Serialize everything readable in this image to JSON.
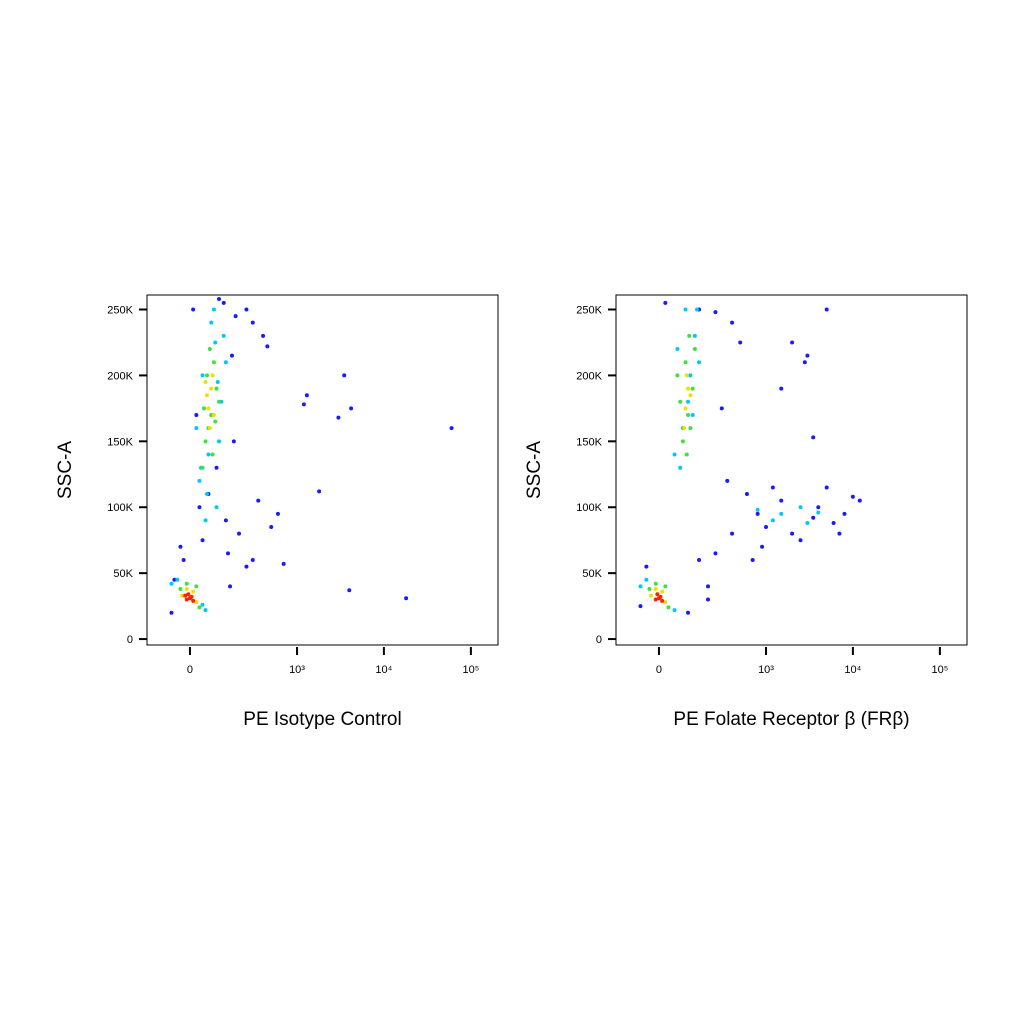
{
  "chart_data": [
    {
      "type": "scatter",
      "xlabel": "PE Isotype Control",
      "ylabel": "SSC-A",
      "xscale": "asinh",
      "xlim": [
        -165,
        205000
      ],
      "ylim": [
        -4500,
        261000
      ],
      "xticks": [
        0,
        {
          "value": 1000,
          "label": "10³"
        },
        {
          "value": 10000,
          "label": "10⁴"
        },
        {
          "value": 100000,
          "label": "10⁵"
        }
      ],
      "yticks": [
        0,
        {
          "value": 50000,
          "label": "50K"
        },
        {
          "value": 100000,
          "label": "100K"
        },
        {
          "value": 150000,
          "label": "150K"
        },
        {
          "value": 200000,
          "label": "200K"
        },
        {
          "value": 250000,
          "label": "250K"
        }
      ],
      "series": [
        {
          "color": "#1a1aff",
          "x": [
            -60,
            10,
            120,
            180,
            250,
            300,
            400,
            450,
            1300,
            3500,
            4200,
            1200,
            1800,
            60000,
            4000,
            18000,
            300,
            500,
            700,
            -30,
            150,
            90,
            30,
            200,
            600,
            3000,
            250,
            350,
            -20,
            160,
            40,
            130,
            -50,
            170,
            100,
            20,
            140,
            60
          ],
          "y": [
            20000,
            250000,
            255000,
            245000,
            250000,
            240000,
            230000,
            222000,
            185000,
            200000,
            175000,
            178000,
            112000,
            160000,
            37000,
            31000,
            60000,
            85000,
            57000,
            70000,
            40000,
            130000,
            100000,
            80000,
            95000,
            168000,
            55000,
            105000,
            60000,
            215000,
            75000,
            90000,
            45000,
            150000,
            258000,
            170000,
            65000,
            110000
          ]
        },
        {
          "color": "#00c8ff",
          "x": [
            30,
            60,
            90,
            120,
            40,
            80,
            110,
            20,
            50,
            100,
            70,
            130,
            35,
            95,
            55,
            85,
            -40,
            50,
            -60,
            40
          ],
          "y": [
            120000,
            140000,
            100000,
            230000,
            200000,
            250000,
            180000,
            160000,
            90000,
            150000,
            240000,
            210000,
            130000,
            195000,
            110000,
            225000,
            45000,
            22000,
            42000,
            26000
          ]
        },
        {
          "color": "#40e040",
          "x": [
            50,
            70,
            90,
            40,
            80,
            60,
            100,
            55,
            75,
            65,
            -30,
            30,
            -10,
            20,
            85,
            45
          ],
          "y": [
            150000,
            170000,
            190000,
            130000,
            210000,
            160000,
            180000,
            200000,
            140000,
            220000,
            38000,
            24000,
            42000,
            40000,
            165000,
            175000
          ]
        },
        {
          "color": "#f0e000",
          "x": [
            60,
            70,
            65,
            75,
            55,
            -25,
            20,
            -10,
            10,
            80,
            50
          ],
          "y": [
            175000,
            190000,
            160000,
            200000,
            185000,
            33000,
            28000,
            38000,
            36000,
            170000,
            195000
          ]
        },
        {
          "color": "#ff2000",
          "x": [
            -10,
            5,
            -5,
            10,
            0,
            -15
          ],
          "y": [
            30000,
            32000,
            34000,
            29000,
            31000,
            33000
          ]
        }
      ]
    },
    {
      "type": "scatter",
      "xlabel": "PE Folate Receptor β (FRβ)",
      "ylabel": "SSC-A",
      "xscale": "asinh",
      "xlim": [
        -165,
        205000
      ],
      "ylim": [
        -4500,
        261000
      ],
      "xticks": [
        0,
        {
          "value": 1000,
          "label": "10³"
        },
        {
          "value": 10000,
          "label": "10⁴"
        },
        {
          "value": 100000,
          "label": "10⁵"
        }
      ],
      "yticks": [
        0,
        {
          "value": 50000,
          "label": "50K"
        },
        {
          "value": 100000,
          "label": "100K"
        },
        {
          "value": 150000,
          "label": "150K"
        },
        {
          "value": 200000,
          "label": "200K"
        },
        {
          "value": 250000,
          "label": "250K"
        }
      ],
      "series": [
        {
          "color": "#1a1aff",
          "x": [
            -60,
            20,
            150,
            250,
            400,
            500,
            5000,
            2000,
            3000,
            1500,
            300,
            600,
            800,
            1000,
            1500,
            2500,
            4000,
            6000,
            8000,
            12000,
            700,
            900,
            1200,
            2000,
            3500,
            5000,
            7000,
            10000,
            400,
            250,
            200,
            350,
            -40,
            150,
            100,
            3500,
            2800,
            200
          ],
          "y": [
            25000,
            255000,
            250000,
            248000,
            240000,
            225000,
            250000,
            225000,
            215000,
            190000,
            175000,
            110000,
            95000,
            85000,
            105000,
            75000,
            100000,
            88000,
            95000,
            105000,
            60000,
            70000,
            115000,
            80000,
            92000,
            115000,
            80000,
            108000,
            80000,
            65000,
            40000,
            120000,
            55000,
            60000,
            20000,
            153000,
            210000,
            30000
          ]
        },
        {
          "color": "#00c8ff",
          "x": [
            50,
            80,
            110,
            140,
            60,
            100,
            130,
            70,
            90,
            120,
            150,
            1500,
            2500,
            800,
            3000,
            4000,
            1200,
            -40,
            50,
            -60
          ],
          "y": [
            140000,
            160000,
            200000,
            250000,
            220000,
            180000,
            230000,
            130000,
            250000,
            170000,
            210000,
            95000,
            100000,
            98000,
            88000,
            96000,
            90000,
            45000,
            22000,
            40000
          ]
        },
        {
          "color": "#40e040",
          "x": [
            80,
            100,
            120,
            60,
            90,
            110,
            70,
            130,
            95,
            -30,
            30,
            -10,
            20,
            105
          ],
          "y": [
            150000,
            170000,
            190000,
            200000,
            210000,
            160000,
            180000,
            220000,
            140000,
            38000,
            24000,
            42000,
            40000,
            230000
          ]
        },
        {
          "color": "#f0e000",
          "x": [
            90,
            100,
            85,
            110,
            95,
            -25,
            20,
            -10,
            10
          ],
          "y": [
            175000,
            190000,
            160000,
            185000,
            200000,
            33000,
            28000,
            38000,
            36000
          ]
        },
        {
          "color": "#ff2000",
          "x": [
            -10,
            5,
            -5,
            10,
            0
          ],
          "y": [
            30000,
            32000,
            34000,
            29000,
            31000
          ]
        }
      ]
    }
  ]
}
